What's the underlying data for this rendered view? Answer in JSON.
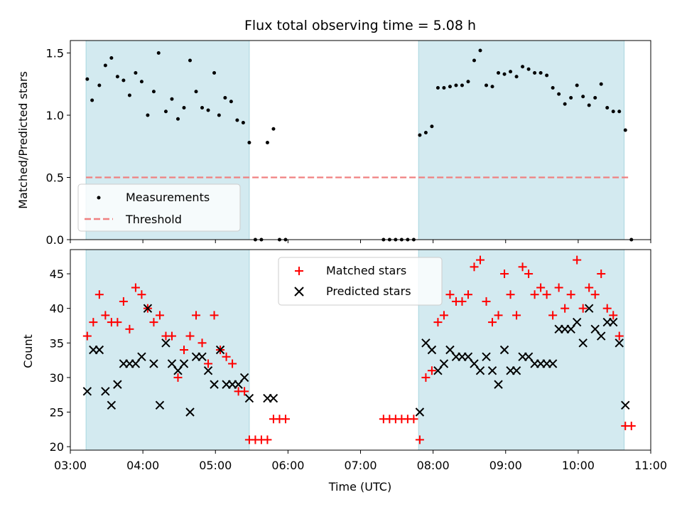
{
  "chart_data": [
    {
      "type": "scatter",
      "title": "Flux total observing time = 5.08 h",
      "xlabel": "",
      "ylabel": "Matched/Predicted stars",
      "xlim": [
        "03:00",
        "11:00"
      ],
      "ylim": [
        0,
        1.6
      ],
      "x_tick_labels": [
        "03:00",
        "04:00",
        "05:00",
        "06:00",
        "07:00",
        "08:00",
        "09:00",
        "10:00",
        "11:00"
      ],
      "y_ticks": [
        0.0,
        0.5,
        1.0,
        1.5
      ],
      "y_tick_labels": [
        "0.0",
        "0.5",
        "1.0",
        "1.5"
      ],
      "shaded_intervals": [
        [
          "03:13",
          "05:28"
        ],
        [
          "07:48",
          "10:38"
        ]
      ],
      "shade_color": "#d3eaf0",
      "legend_position": "lower-left",
      "threshold": {
        "name": "Threshold",
        "value": 0.5,
        "x_range": [
          "03:13",
          "10:42"
        ],
        "color": "#f08080",
        "style": "dashed"
      },
      "series": [
        {
          "name": "Measurements",
          "marker": "dot",
          "color": "#000000",
          "points": [
            [
              "03:14",
              1.29
            ],
            [
              "03:18",
              1.12
            ],
            [
              "03:24",
              1.24
            ],
            [
              "03:29",
              1.4
            ],
            [
              "03:34",
              1.46
            ],
            [
              "03:39",
              1.31
            ],
            [
              "03:44",
              1.28
            ],
            [
              "03:49",
              1.16
            ],
            [
              "03:54",
              1.34
            ],
            [
              "03:59",
              1.27
            ],
            [
              "04:04",
              1.0
            ],
            [
              "04:09",
              1.19
            ],
            [
              "04:13",
              1.5
            ],
            [
              "04:19",
              1.03
            ],
            [
              "04:24",
              1.13
            ],
            [
              "04:29",
              0.97
            ],
            [
              "04:34",
              1.06
            ],
            [
              "04:39",
              1.44
            ],
            [
              "04:44",
              1.19
            ],
            [
              "04:49",
              1.06
            ],
            [
              "04:54",
              1.04
            ],
            [
              "04:59",
              1.34
            ],
            [
              "05:03",
              1.0
            ],
            [
              "05:08",
              1.14
            ],
            [
              "05:13",
              1.11
            ],
            [
              "05:18",
              0.96
            ],
            [
              "05:23",
              0.94
            ],
            [
              "05:28",
              0.78
            ],
            [
              "05:33",
              0.0
            ],
            [
              "05:38",
              0.0
            ],
            [
              "05:43",
              0.78
            ],
            [
              "05:48",
              0.89
            ],
            [
              "05:53",
              0.0
            ],
            [
              "05:58",
              0.0
            ],
            [
              "07:19",
              0.0
            ],
            [
              "07:24",
              0.0
            ],
            [
              "07:29",
              0.0
            ],
            [
              "07:34",
              0.0
            ],
            [
              "07:39",
              0.0
            ],
            [
              "07:44",
              0.0
            ],
            [
              "07:49",
              0.84
            ],
            [
              "07:54",
              0.86
            ],
            [
              "07:59",
              0.91
            ],
            [
              "08:04",
              1.22
            ],
            [
              "08:09",
              1.22
            ],
            [
              "08:14",
              1.23
            ],
            [
              "08:19",
              1.24
            ],
            [
              "08:24",
              1.24
            ],
            [
              "08:29",
              1.27
            ],
            [
              "08:34",
              1.44
            ],
            [
              "08:39",
              1.52
            ],
            [
              "08:44",
              1.24
            ],
            [
              "08:49",
              1.23
            ],
            [
              "08:54",
              1.34
            ],
            [
              "08:59",
              1.33
            ],
            [
              "09:04",
              1.35
            ],
            [
              "09:09",
              1.31
            ],
            [
              "09:14",
              1.39
            ],
            [
              "09:19",
              1.37
            ],
            [
              "09:24",
              1.34
            ],
            [
              "09:29",
              1.34
            ],
            [
              "09:34",
              1.32
            ],
            [
              "09:39",
              1.22
            ],
            [
              "09:44",
              1.17
            ],
            [
              "09:49",
              1.09
            ],
            [
              "09:54",
              1.14
            ],
            [
              "09:59",
              1.24
            ],
            [
              "10:04",
              1.15
            ],
            [
              "10:09",
              1.08
            ],
            [
              "10:14",
              1.14
            ],
            [
              "10:19",
              1.25
            ],
            [
              "10:24",
              1.06
            ],
            [
              "10:29",
              1.03
            ],
            [
              "10:34",
              1.03
            ],
            [
              "10:39",
              0.88
            ],
            [
              "10:44",
              0.0
            ]
          ]
        }
      ]
    },
    {
      "type": "scatter",
      "title": "",
      "xlabel": "Time (UTC)",
      "ylabel": "Count",
      "xlim": [
        "03:00",
        "11:00"
      ],
      "ylim": [
        19.5,
        48.5
      ],
      "x_tick_labels": [
        "03:00",
        "04:00",
        "05:00",
        "06:00",
        "07:00",
        "08:00",
        "09:00",
        "10:00",
        "11:00"
      ],
      "y_ticks": [
        20,
        25,
        30,
        35,
        40,
        45
      ],
      "y_tick_labels": [
        "20",
        "25",
        "30",
        "35",
        "40",
        "45"
      ],
      "shaded_intervals": [
        [
          "03:13",
          "05:28"
        ],
        [
          "07:48",
          "10:38"
        ]
      ],
      "shade_color": "#d3eaf0",
      "legend_position": "upper-center",
      "series": [
        {
          "name": "Matched stars",
          "marker": "plus",
          "color": "#ff0000",
          "points": [
            [
              "03:14",
              36
            ],
            [
              "03:19",
              38
            ],
            [
              "03:24",
              42
            ],
            [
              "03:29",
              39
            ],
            [
              "03:34",
              38
            ],
            [
              "03:39",
              38
            ],
            [
              "03:44",
              41
            ],
            [
              "03:49",
              37
            ],
            [
              "03:54",
              43
            ],
            [
              "03:59",
              42
            ],
            [
              "04:04",
              40
            ],
            [
              "04:09",
              38
            ],
            [
              "04:14",
              39
            ],
            [
              "04:19",
              36
            ],
            [
              "04:24",
              36
            ],
            [
              "04:29",
              30
            ],
            [
              "04:34",
              34
            ],
            [
              "04:39",
              36
            ],
            [
              "04:44",
              39
            ],
            [
              "04:49",
              35
            ],
            [
              "04:54",
              32
            ],
            [
              "04:59",
              39
            ],
            [
              "05:04",
              34
            ],
            [
              "05:09",
              33
            ],
            [
              "05:14",
              32
            ],
            [
              "05:19",
              28
            ],
            [
              "05:24",
              28
            ],
            [
              "05:28",
              21
            ],
            [
              "05:33",
              21
            ],
            [
              "05:38",
              21
            ],
            [
              "05:43",
              21
            ],
            [
              "05:48",
              24
            ],
            [
              "05:53",
              24
            ],
            [
              "05:58",
              24
            ],
            [
              "07:19",
              24
            ],
            [
              "07:24",
              24
            ],
            [
              "07:29",
              24
            ],
            [
              "07:34",
              24
            ],
            [
              "07:39",
              24
            ],
            [
              "07:44",
              24
            ],
            [
              "07:49",
              21
            ],
            [
              "07:54",
              30
            ],
            [
              "07:59",
              31
            ],
            [
              "08:04",
              38
            ],
            [
              "08:09",
              39
            ],
            [
              "08:14",
              42
            ],
            [
              "08:19",
              41
            ],
            [
              "08:24",
              41
            ],
            [
              "08:29",
              42
            ],
            [
              "08:34",
              46
            ],
            [
              "08:39",
              47
            ],
            [
              "08:44",
              41
            ],
            [
              "08:49",
              38
            ],
            [
              "08:54",
              39
            ],
            [
              "08:59",
              45
            ],
            [
              "09:04",
              42
            ],
            [
              "09:09",
              39
            ],
            [
              "09:14",
              46
            ],
            [
              "09:19",
              45
            ],
            [
              "09:24",
              42
            ],
            [
              "09:29",
              43
            ],
            [
              "09:34",
              42
            ],
            [
              "09:39",
              39
            ],
            [
              "09:44",
              43
            ],
            [
              "09:49",
              40
            ],
            [
              "09:54",
              42
            ],
            [
              "09:59",
              47
            ],
            [
              "10:04",
              40
            ],
            [
              "10:09",
              43
            ],
            [
              "10:14",
              42
            ],
            [
              "10:19",
              45
            ],
            [
              "10:24",
              40
            ],
            [
              "10:29",
              39
            ],
            [
              "10:34",
              36
            ],
            [
              "10:39",
              23
            ],
            [
              "10:44",
              23
            ]
          ]
        },
        {
          "name": "Predicted stars",
          "marker": "x",
          "color": "#000000",
          "points": [
            [
              "03:14",
              28
            ],
            [
              "03:19",
              34
            ],
            [
              "03:24",
              34
            ],
            [
              "03:29",
              28
            ],
            [
              "03:34",
              26
            ],
            [
              "03:39",
              29
            ],
            [
              "03:44",
              32
            ],
            [
              "03:49",
              32
            ],
            [
              "03:54",
              32
            ],
            [
              "03:59",
              33
            ],
            [
              "04:04",
              40
            ],
            [
              "04:09",
              32
            ],
            [
              "04:14",
              26
            ],
            [
              "04:19",
              35
            ],
            [
              "04:24",
              32
            ],
            [
              "04:29",
              31
            ],
            [
              "04:34",
              32
            ],
            [
              "04:39",
              25
            ],
            [
              "04:44",
              33
            ],
            [
              "04:49",
              33
            ],
            [
              "04:54",
              31
            ],
            [
              "04:59",
              29
            ],
            [
              "05:04",
              34
            ],
            [
              "05:09",
              29
            ],
            [
              "05:14",
              29
            ],
            [
              "05:19",
              29
            ],
            [
              "05:24",
              30
            ],
            [
              "05:28",
              27
            ],
            [
              "05:43",
              27
            ],
            [
              "05:48",
              27
            ],
            [
              "07:49",
              25
            ],
            [
              "07:54",
              35
            ],
            [
              "07:59",
              34
            ],
            [
              "08:04",
              31
            ],
            [
              "08:09",
              32
            ],
            [
              "08:14",
              34
            ],
            [
              "08:19",
              33
            ],
            [
              "08:24",
              33
            ],
            [
              "08:29",
              33
            ],
            [
              "08:34",
              32
            ],
            [
              "08:39",
              31
            ],
            [
              "08:44",
              33
            ],
            [
              "08:49",
              31
            ],
            [
              "08:54",
              29
            ],
            [
              "08:59",
              34
            ],
            [
              "09:04",
              31
            ],
            [
              "09:09",
              31
            ],
            [
              "09:14",
              33
            ],
            [
              "09:19",
              33
            ],
            [
              "09:24",
              32
            ],
            [
              "09:29",
              32
            ],
            [
              "09:34",
              32
            ],
            [
              "09:39",
              32
            ],
            [
              "09:44",
              37
            ],
            [
              "09:49",
              37
            ],
            [
              "09:54",
              37
            ],
            [
              "09:59",
              38
            ],
            [
              "10:04",
              35
            ],
            [
              "10:09",
              40
            ],
            [
              "10:14",
              37
            ],
            [
              "10:19",
              36
            ],
            [
              "10:24",
              38
            ],
            [
              "10:29",
              38
            ],
            [
              "10:34",
              35
            ],
            [
              "10:39",
              26
            ]
          ]
        }
      ]
    }
  ]
}
